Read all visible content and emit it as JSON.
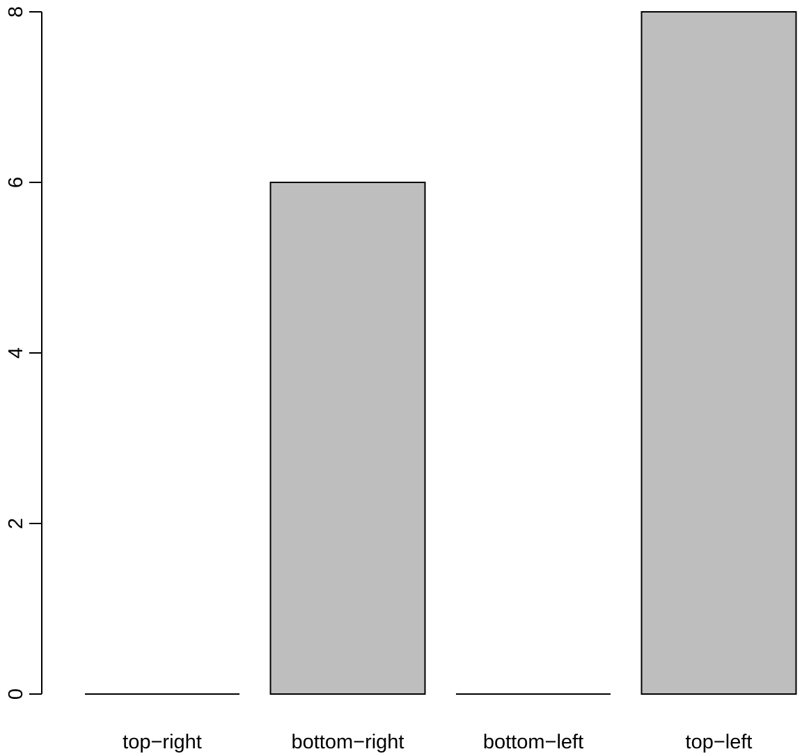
{
  "chart_data": {
    "type": "bar",
    "categories": [
      "top−right",
      "bottom−right",
      "bottom−left",
      "top−left"
    ],
    "values": [
      0,
      6,
      0,
      8
    ],
    "title": "",
    "xlabel": "",
    "ylabel": "",
    "ylim": [
      0,
      8
    ],
    "yticks": [
      0,
      2,
      4,
      6,
      8
    ],
    "ytick_labels": [
      "0",
      "2",
      "4",
      "6",
      "8"
    ],
    "grid": false,
    "legend": "none",
    "bar_fill": "#bebebe",
    "bar_stroke": "#000000"
  }
}
